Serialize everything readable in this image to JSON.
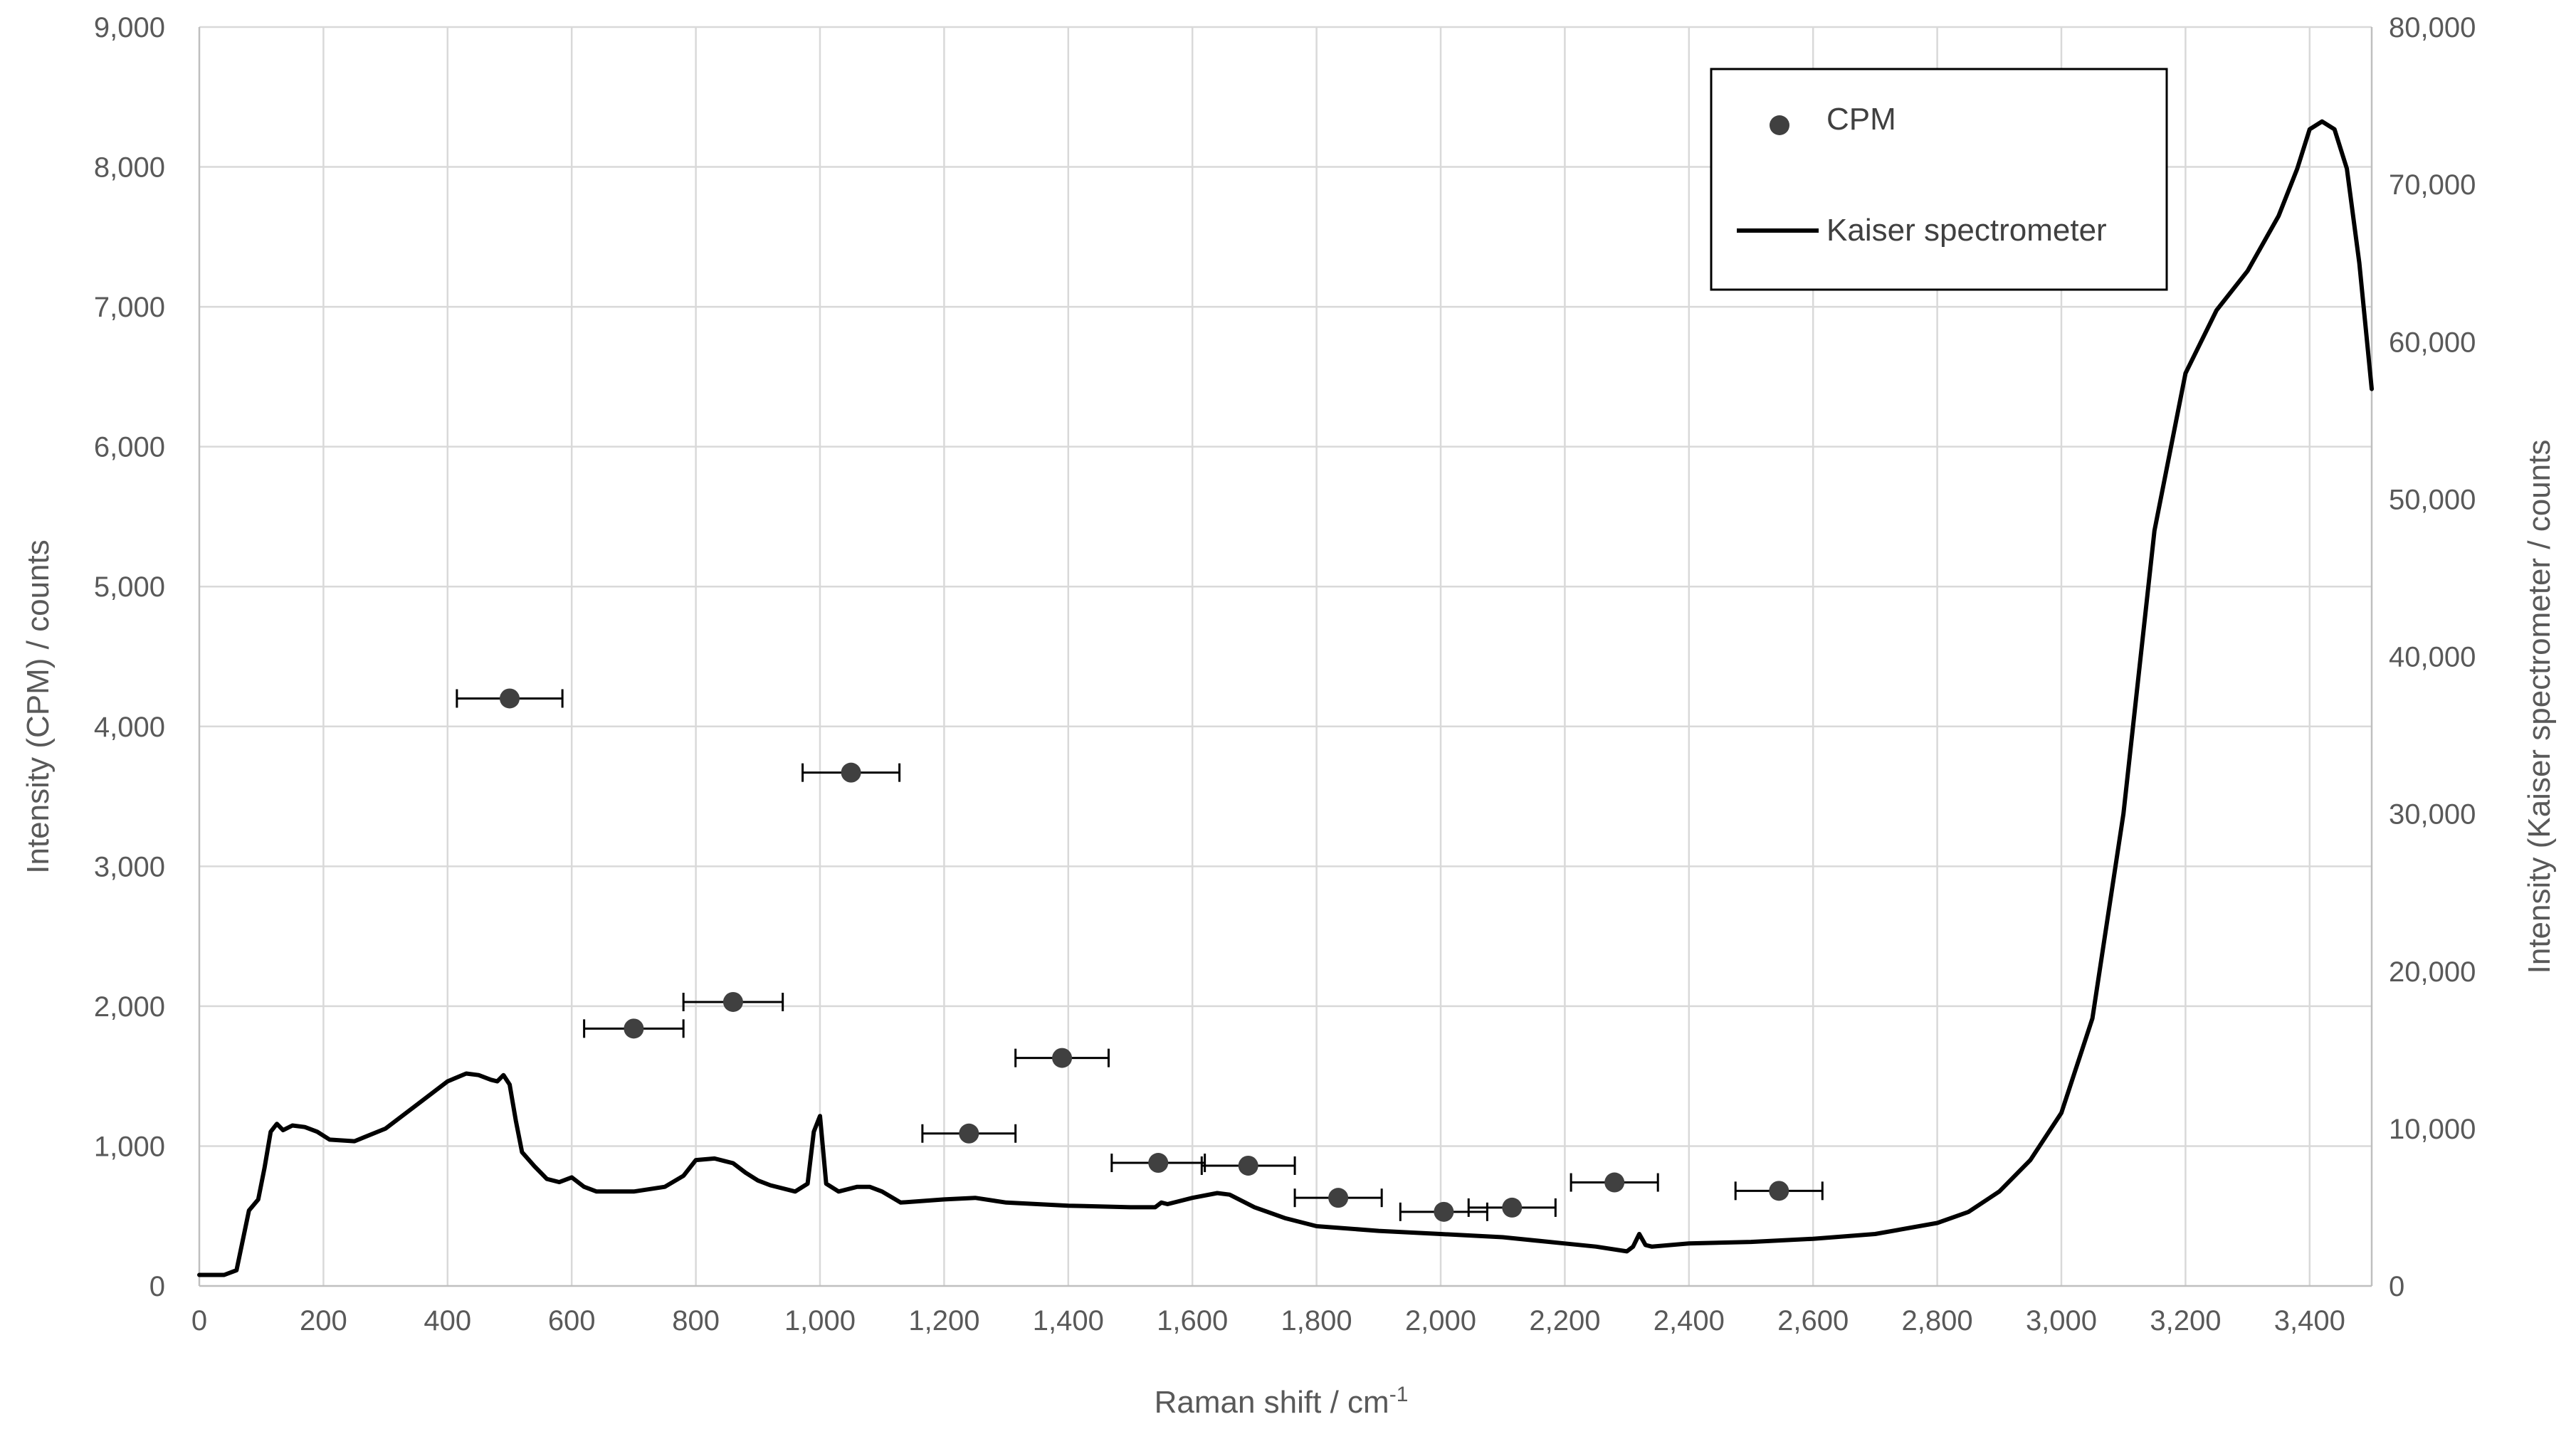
{
  "chart_data": {
    "type": "scatter",
    "xlabel": "Raman shift / cm",
    "xlabel_sup": "-1",
    "ylabel_left": "Intensity (CPM) / counts",
    "ylabel_right": "Intensity (Kaiser spectrometer / counts",
    "xlim": [
      0,
      3500
    ],
    "ylim_left": [
      0,
      9000
    ],
    "ylim_right": [
      0,
      80000
    ],
    "x_ticks": [
      0,
      200,
      400,
      600,
      800,
      1000,
      1200,
      1400,
      1600,
      1800,
      2000,
      2200,
      2400,
      2600,
      2800,
      3000,
      3200,
      3400
    ],
    "x_tick_labels": [
      "0",
      "200",
      "400",
      "600",
      "800",
      "1,000",
      "1,200",
      "1,400",
      "1,600",
      "1,800",
      "2,000",
      "2,200",
      "2,400",
      "2,600",
      "2,800",
      "3,000",
      "3,200",
      "3,400"
    ],
    "y_left_ticks": [
      0,
      1000,
      2000,
      3000,
      4000,
      5000,
      6000,
      7000,
      8000,
      9000
    ],
    "y_left_tick_labels": [
      "0",
      "1,000",
      "2,000",
      "3,000",
      "4,000",
      "5,000",
      "6,000",
      "7,000",
      "8,000",
      "9,000"
    ],
    "y_right_ticks": [
      0,
      10000,
      20000,
      30000,
      40000,
      50000,
      60000,
      70000,
      80000
    ],
    "y_right_tick_labels": [
      "0",
      "10,000",
      "20,000",
      "30,000",
      "40,000",
      "50,000",
      "60,000",
      "70,000",
      "80,000"
    ],
    "grid": true,
    "legend": {
      "position": "top-right",
      "entries": [
        {
          "label": "CPM",
          "marker": "circle"
        },
        {
          "label": "Kaiser spectrometer",
          "marker": "line"
        }
      ]
    },
    "colors": {
      "cpm": "#404040",
      "kaiser": "#000000",
      "grid": "#d9d9d9",
      "text": "#595959"
    },
    "series": [
      {
        "name": "CPM",
        "axis": "left",
        "points": [
          {
            "x": 500,
            "y": 4200,
            "xerr": 85
          },
          {
            "x": 700,
            "y": 1840,
            "xerr": 80
          },
          {
            "x": 860,
            "y": 2030,
            "xerr": 80
          },
          {
            "x": 1050,
            "y": 3670,
            "xerr": 78
          },
          {
            "x": 1240,
            "y": 1090,
            "xerr": 75
          },
          {
            "x": 1390,
            "y": 1630,
            "xerr": 75
          },
          {
            "x": 1545,
            "y": 880,
            "xerr": 75
          },
          {
            "x": 1690,
            "y": 860,
            "xerr": 75
          },
          {
            "x": 1835,
            "y": 630,
            "xerr": 70
          },
          {
            "x": 2005,
            "y": 530,
            "xerr": 70
          },
          {
            "x": 2115,
            "y": 560,
            "xerr": 70
          },
          {
            "x": 2280,
            "y": 740,
            "xerr": 70
          },
          {
            "x": 2545,
            "y": 680,
            "xerr": 70
          }
        ]
      },
      {
        "name": "Kaiser spectrometer",
        "axis": "right",
        "x": [
          0,
          40,
          60,
          80,
          95,
          105,
          115,
          125,
          135,
          150,
          170,
          190,
          210,
          250,
          300,
          350,
          400,
          430,
          450,
          470,
          480,
          490,
          500,
          510,
          520,
          540,
          560,
          580,
          600,
          620,
          640,
          660,
          700,
          750,
          780,
          800,
          830,
          860,
          880,
          900,
          920,
          960,
          980,
          990,
          1000,
          1010,
          1030,
          1060,
          1080,
          1100,
          1130,
          1200,
          1250,
          1300,
          1400,
          1500,
          1540,
          1550,
          1560,
          1600,
          1640,
          1660,
          1700,
          1750,
          1800,
          1900,
          2000,
          2100,
          2200,
          2250,
          2300,
          2310,
          2320,
          2330,
          2340,
          2400,
          2500,
          2600,
          2700,
          2800,
          2850,
          2900,
          2950,
          3000,
          3050,
          3100,
          3150,
          3200,
          3250,
          3300,
          3350,
          3380,
          3400,
          3420,
          3440,
          3460,
          3480,
          3500
        ],
        "y": [
          700,
          700,
          1000,
          4800,
          5500,
          7500,
          9800,
          10300,
          9900,
          10200,
          10100,
          9800,
          9300,
          9200,
          10000,
          11500,
          13000,
          13500,
          13400,
          13100,
          13000,
          13400,
          12800,
          10500,
          8500,
          7600,
          6800,
          6600,
          6900,
          6300,
          6000,
          6000,
          6000,
          6300,
          7000,
          8000,
          8100,
          7800,
          7200,
          6700,
          6400,
          6000,
          6500,
          9800,
          10800,
          6500,
          6000,
          6300,
          6300,
          6000,
          5300,
          5500,
          5600,
          5300,
          5100,
          5000,
          5000,
          5300,
          5200,
          5600,
          5900,
          5800,
          5000,
          4300,
          3800,
          3500,
          3300,
          3100,
          2700,
          2500,
          2200,
          2500,
          3300,
          2600,
          2500,
          2700,
          2800,
          3000,
          3300,
          4000,
          4700,
          6000,
          8000,
          11000,
          17000,
          30000,
          48000,
          58000,
          62000,
          64500,
          68000,
          71000,
          73500,
          74000,
          73500,
          71000,
          65000,
          57000
        ]
      }
    ]
  }
}
